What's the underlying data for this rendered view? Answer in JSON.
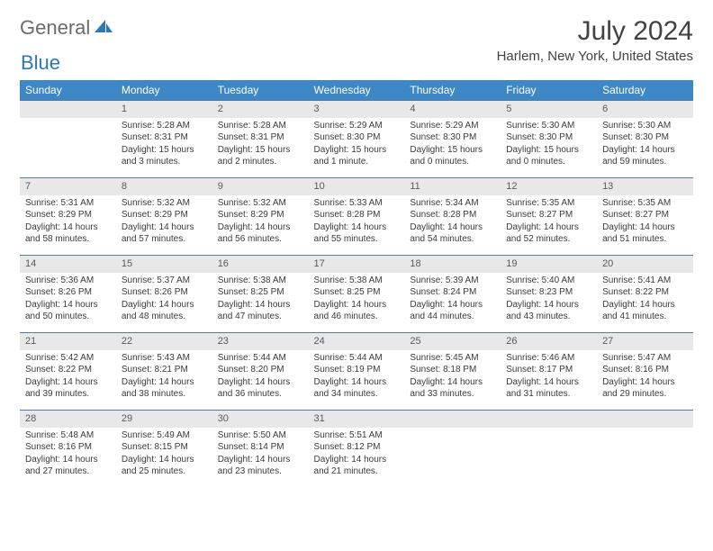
{
  "brand": {
    "part1": "General",
    "part2": "Blue",
    "logo_color": "#2e78b7",
    "logo_gray": "#6b6b6b"
  },
  "title": "July 2024",
  "location": "Harlem, New York, United States",
  "colors": {
    "header_bg": "#3d87c7",
    "header_text": "#ffffff",
    "daynum_bg": "#e8e8e8",
    "daynum_text": "#5a5a5a",
    "rule": "#5a7a9a",
    "body_text": "#3a3a3a",
    "title_text": "#424242"
  },
  "weekdays": [
    "Sunday",
    "Monday",
    "Tuesday",
    "Wednesday",
    "Thursday",
    "Friday",
    "Saturday"
  ],
  "weeks": [
    [
      {
        "n": "",
        "lines": []
      },
      {
        "n": "1",
        "lines": [
          "Sunrise: 5:28 AM",
          "Sunset: 8:31 PM",
          "Daylight: 15 hours and 3 minutes."
        ]
      },
      {
        "n": "2",
        "lines": [
          "Sunrise: 5:28 AM",
          "Sunset: 8:31 PM",
          "Daylight: 15 hours and 2 minutes."
        ]
      },
      {
        "n": "3",
        "lines": [
          "Sunrise: 5:29 AM",
          "Sunset: 8:30 PM",
          "Daylight: 15 hours and 1 minute."
        ]
      },
      {
        "n": "4",
        "lines": [
          "Sunrise: 5:29 AM",
          "Sunset: 8:30 PM",
          "Daylight: 15 hours and 0 minutes."
        ]
      },
      {
        "n": "5",
        "lines": [
          "Sunrise: 5:30 AM",
          "Sunset: 8:30 PM",
          "Daylight: 15 hours and 0 minutes."
        ]
      },
      {
        "n": "6",
        "lines": [
          "Sunrise: 5:30 AM",
          "Sunset: 8:30 PM",
          "Daylight: 14 hours and 59 minutes."
        ]
      }
    ],
    [
      {
        "n": "7",
        "lines": [
          "Sunrise: 5:31 AM",
          "Sunset: 8:29 PM",
          "Daylight: 14 hours and 58 minutes."
        ]
      },
      {
        "n": "8",
        "lines": [
          "Sunrise: 5:32 AM",
          "Sunset: 8:29 PM",
          "Daylight: 14 hours and 57 minutes."
        ]
      },
      {
        "n": "9",
        "lines": [
          "Sunrise: 5:32 AM",
          "Sunset: 8:29 PM",
          "Daylight: 14 hours and 56 minutes."
        ]
      },
      {
        "n": "10",
        "lines": [
          "Sunrise: 5:33 AM",
          "Sunset: 8:28 PM",
          "Daylight: 14 hours and 55 minutes."
        ]
      },
      {
        "n": "11",
        "lines": [
          "Sunrise: 5:34 AM",
          "Sunset: 8:28 PM",
          "Daylight: 14 hours and 54 minutes."
        ]
      },
      {
        "n": "12",
        "lines": [
          "Sunrise: 5:35 AM",
          "Sunset: 8:27 PM",
          "Daylight: 14 hours and 52 minutes."
        ]
      },
      {
        "n": "13",
        "lines": [
          "Sunrise: 5:35 AM",
          "Sunset: 8:27 PM",
          "Daylight: 14 hours and 51 minutes."
        ]
      }
    ],
    [
      {
        "n": "14",
        "lines": [
          "Sunrise: 5:36 AM",
          "Sunset: 8:26 PM",
          "Daylight: 14 hours and 50 minutes."
        ]
      },
      {
        "n": "15",
        "lines": [
          "Sunrise: 5:37 AM",
          "Sunset: 8:26 PM",
          "Daylight: 14 hours and 48 minutes."
        ]
      },
      {
        "n": "16",
        "lines": [
          "Sunrise: 5:38 AM",
          "Sunset: 8:25 PM",
          "Daylight: 14 hours and 47 minutes."
        ]
      },
      {
        "n": "17",
        "lines": [
          "Sunrise: 5:38 AM",
          "Sunset: 8:25 PM",
          "Daylight: 14 hours and 46 minutes."
        ]
      },
      {
        "n": "18",
        "lines": [
          "Sunrise: 5:39 AM",
          "Sunset: 8:24 PM",
          "Daylight: 14 hours and 44 minutes."
        ]
      },
      {
        "n": "19",
        "lines": [
          "Sunrise: 5:40 AM",
          "Sunset: 8:23 PM",
          "Daylight: 14 hours and 43 minutes."
        ]
      },
      {
        "n": "20",
        "lines": [
          "Sunrise: 5:41 AM",
          "Sunset: 8:22 PM",
          "Daylight: 14 hours and 41 minutes."
        ]
      }
    ],
    [
      {
        "n": "21",
        "lines": [
          "Sunrise: 5:42 AM",
          "Sunset: 8:22 PM",
          "Daylight: 14 hours and 39 minutes."
        ]
      },
      {
        "n": "22",
        "lines": [
          "Sunrise: 5:43 AM",
          "Sunset: 8:21 PM",
          "Daylight: 14 hours and 38 minutes."
        ]
      },
      {
        "n": "23",
        "lines": [
          "Sunrise: 5:44 AM",
          "Sunset: 8:20 PM",
          "Daylight: 14 hours and 36 minutes."
        ]
      },
      {
        "n": "24",
        "lines": [
          "Sunrise: 5:44 AM",
          "Sunset: 8:19 PM",
          "Daylight: 14 hours and 34 minutes."
        ]
      },
      {
        "n": "25",
        "lines": [
          "Sunrise: 5:45 AM",
          "Sunset: 8:18 PM",
          "Daylight: 14 hours and 33 minutes."
        ]
      },
      {
        "n": "26",
        "lines": [
          "Sunrise: 5:46 AM",
          "Sunset: 8:17 PM",
          "Daylight: 14 hours and 31 minutes."
        ]
      },
      {
        "n": "27",
        "lines": [
          "Sunrise: 5:47 AM",
          "Sunset: 8:16 PM",
          "Daylight: 14 hours and 29 minutes."
        ]
      }
    ],
    [
      {
        "n": "28",
        "lines": [
          "Sunrise: 5:48 AM",
          "Sunset: 8:16 PM",
          "Daylight: 14 hours and 27 minutes."
        ]
      },
      {
        "n": "29",
        "lines": [
          "Sunrise: 5:49 AM",
          "Sunset: 8:15 PM",
          "Daylight: 14 hours and 25 minutes."
        ]
      },
      {
        "n": "30",
        "lines": [
          "Sunrise: 5:50 AM",
          "Sunset: 8:14 PM",
          "Daylight: 14 hours and 23 minutes."
        ]
      },
      {
        "n": "31",
        "lines": [
          "Sunrise: 5:51 AM",
          "Sunset: 8:12 PM",
          "Daylight: 14 hours and 21 minutes."
        ]
      },
      {
        "n": "",
        "lines": []
      },
      {
        "n": "",
        "lines": []
      },
      {
        "n": "",
        "lines": []
      }
    ]
  ]
}
